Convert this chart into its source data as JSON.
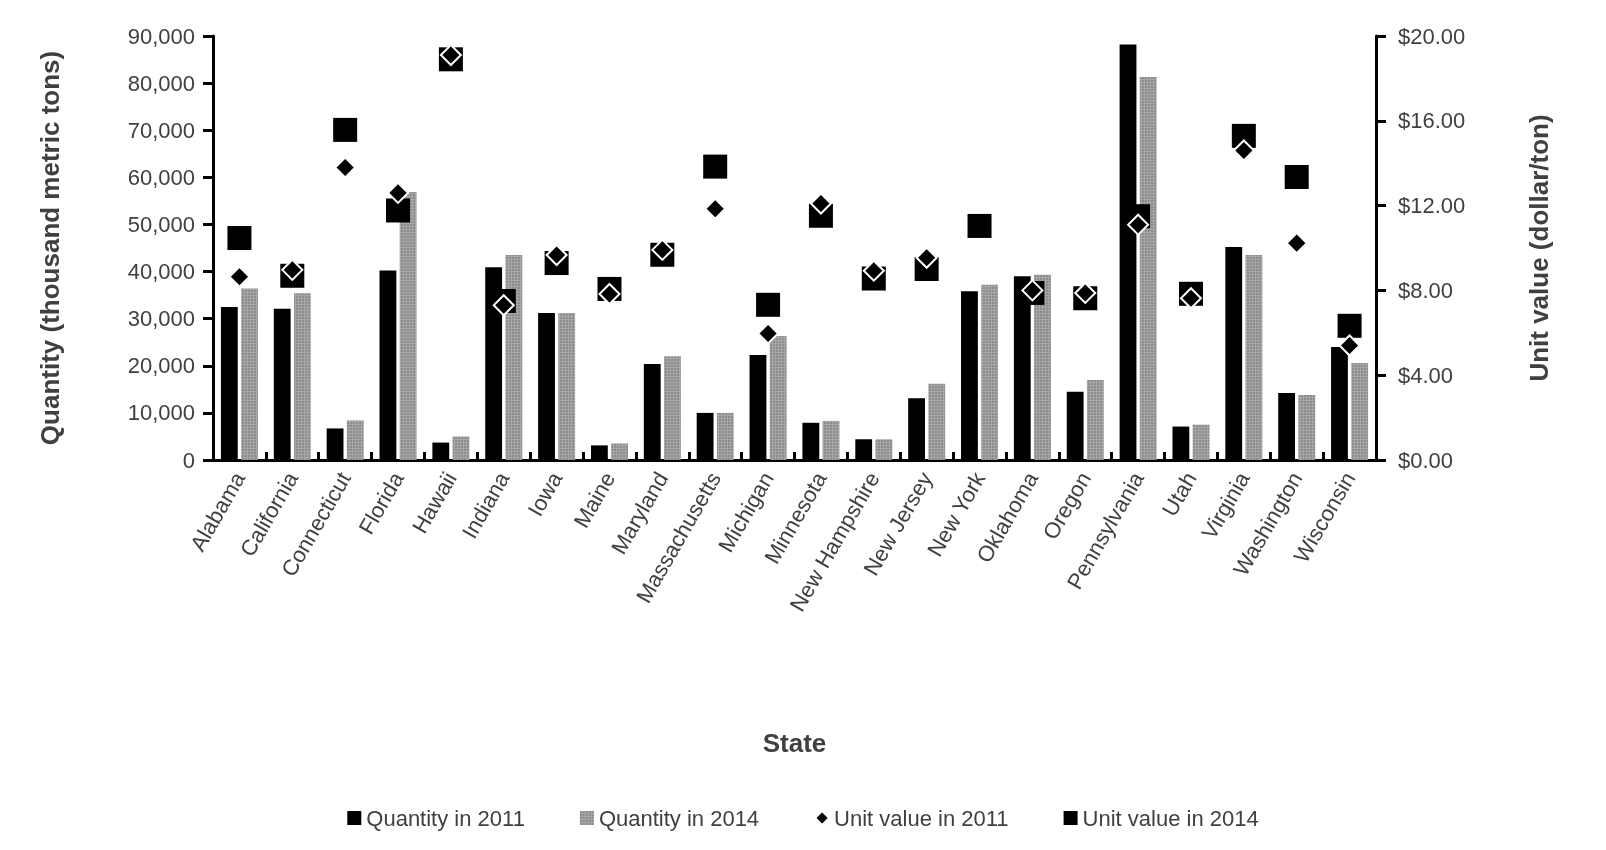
{
  "chart_data": {
    "type": "bar",
    "xlabel": "State",
    "ylabel": "Quantity (thousand metric tons)",
    "y2label": "Unit value (dollar/ton)",
    "categories": [
      "Alabama",
      "California",
      "Connecticut",
      "Florida",
      "Hawaii",
      "Indiana",
      "Iowa",
      "Maine",
      "Maryland",
      "Massachusetts",
      "Michigan",
      "Minnesota",
      "New Hampshire",
      "New Jersey",
      "New York",
      "Oklahoma",
      "Oregon",
      "Pennsylvania",
      "Utah",
      "Virginia",
      "Washington",
      "Wisconsin"
    ],
    "series": [
      {
        "name": "Quantity in 2011",
        "color": "#000000",
        "values": [
          32500,
          32100,
          6700,
          40200,
          3700,
          40900,
          31200,
          3100,
          20400,
          10000,
          22300,
          7900,
          4400,
          13100,
          35800,
          39000,
          14500,
          88200,
          7100,
          45200,
          14200,
          24000
        ]
      },
      {
        "name": "Quantity in 2014",
        "color": "#a6a6a6",
        "values": [
          36400,
          35400,
          8400,
          56900,
          5000,
          43500,
          31200,
          3500,
          22000,
          10000,
          26300,
          8300,
          4400,
          16200,
          37200,
          39300,
          17000,
          81300,
          7500,
          43500,
          13800,
          20600
        ]
      },
      {
        "name": "Unit value in 2011",
        "type": "scatter",
        "axis": "y2",
        "marker": "diamond",
        "color": "#000000",
        "values": [
          8.64,
          8.97,
          13.8,
          12.6,
          19.1,
          7.3,
          9.67,
          7.83,
          9.91,
          11.85,
          5.97,
          12.1,
          8.93,
          9.54,
          null,
          8.0,
          7.88,
          11.1,
          7.63,
          14.6,
          10.23,
          5.4
        ]
      },
      {
        "name": "Unit value in 2014",
        "type": "scatter",
        "axis": "y2",
        "marker": "square",
        "color": "#000000",
        "values": [
          10.47,
          8.69,
          15.57,
          11.77,
          18.9,
          7.5,
          9.29,
          8.07,
          9.68,
          13.84,
          7.32,
          11.52,
          8.56,
          9.01,
          11.04,
          7.88,
          7.63,
          11.5,
          7.84,
          15.29,
          13.35,
          6.33
        ]
      }
    ],
    "ylim": [
      0,
      90000
    ],
    "yticks": [
      {
        "value": 0,
        "label": "0"
      },
      {
        "value": 10000,
        "label": "10,000"
      },
      {
        "value": 20000,
        "label": "20,000"
      },
      {
        "value": 30000,
        "label": "30,000"
      },
      {
        "value": 40000,
        "label": "40,000"
      },
      {
        "value": 50000,
        "label": "50,000"
      },
      {
        "value": 60000,
        "label": "60,000"
      },
      {
        "value": 70000,
        "label": "70,000"
      },
      {
        "value": 80000,
        "label": "80,000"
      },
      {
        "value": 90000,
        "label": "90,000"
      }
    ],
    "y2lim": [
      0,
      20
    ],
    "y2ticks": [
      {
        "value": 0,
        "label": "$0.00"
      },
      {
        "value": 4,
        "label": "$4.00"
      },
      {
        "value": 8,
        "label": "$8.00"
      },
      {
        "value": 12,
        "label": "$12.00"
      },
      {
        "value": 16,
        "label": "$16.00"
      },
      {
        "value": 20,
        "label": "$20.00"
      }
    ],
    "grid": false,
    "legend": "bottom"
  }
}
